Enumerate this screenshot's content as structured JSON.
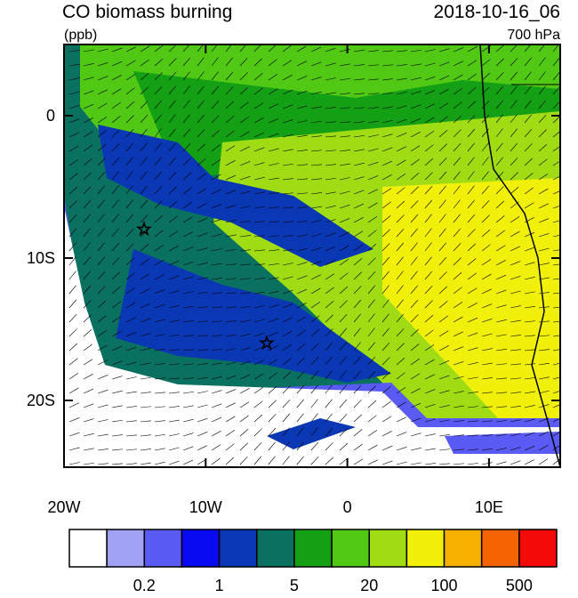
{
  "header": {
    "title": "CO biomass burning",
    "units": "(ppb)",
    "date": "2018-10-16_06",
    "level": "700 hPa"
  },
  "map": {
    "lat_labels": [
      "0",
      "10S",
      "20S"
    ],
    "lon_labels": [
      "20W",
      "10W",
      "0",
      "10E"
    ]
  },
  "colorbar": {
    "colors": [
      "#ffffff",
      "#a0a0f5",
      "#5a5af5",
      "#0a0af0",
      "#0a37b4",
      "#0a7060",
      "#14a014",
      "#50c814",
      "#a0dc14",
      "#f0f00a",
      "#f5b000",
      "#f56400",
      "#f50a0a"
    ],
    "labels": [
      "0.2",
      "1",
      "5",
      "20",
      "100",
      "500"
    ]
  }
}
